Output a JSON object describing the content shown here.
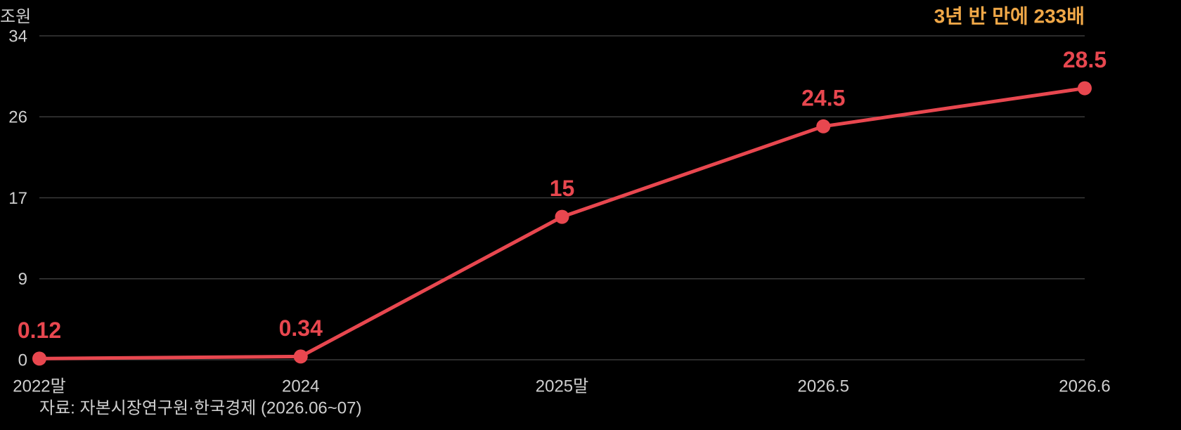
{
  "chart_data": {
    "type": "line",
    "y_unit_label": "조원",
    "annotation": "3년 반 만에 233배",
    "source": "자료: 자본시장연구원·한국경제 (2026.06~07)",
    "categories": [
      "2022말",
      "2024",
      "2025말",
      "2026.5",
      "2026.6"
    ],
    "series": [
      {
        "name": "value",
        "color": "#e8474f",
        "values": [
          0.12,
          0.34,
          15,
          24.5,
          28.5
        ]
      }
    ],
    "ylim": [
      0,
      34
    ],
    "yticks": [
      0,
      {
        "value": 8.5,
        "label": "9"
      },
      17,
      {
        "value": 25.5,
        "label": "26"
      },
      34
    ],
    "grid": true,
    "annotation_color": "#f0a848"
  }
}
